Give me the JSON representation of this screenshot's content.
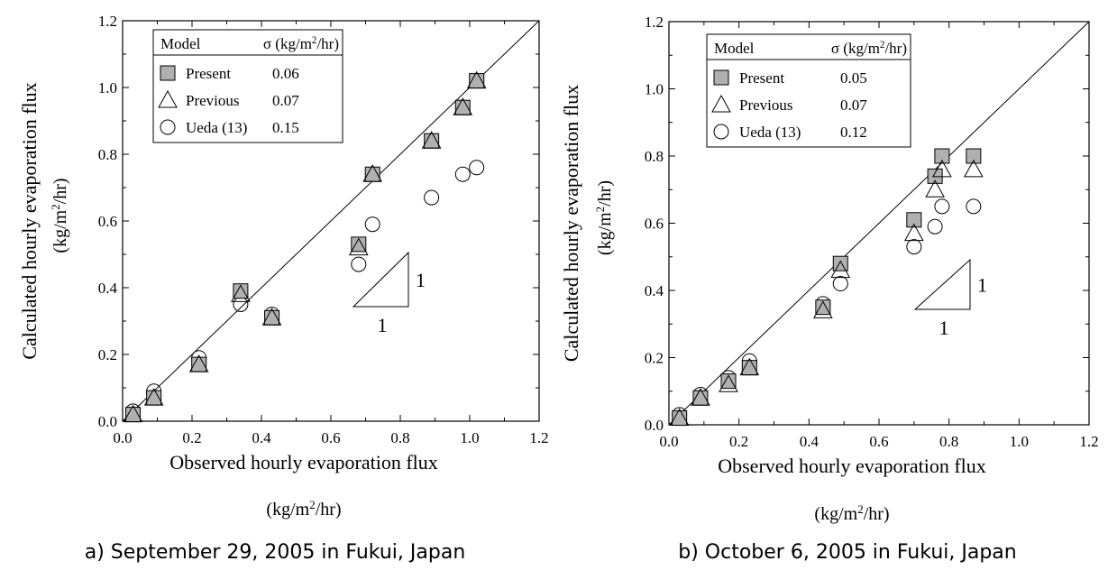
{
  "chart_data": [
    {
      "type": "scatter",
      "caption": "a) September 29, 2005 in Fukui, Japan",
      "xlabel": "Observed hourly evaporation flux",
      "xunit": "(kg/m²/hr)",
      "ylabel": "Calculated hourly evaporation flux",
      "yunit": "(kg/m²/hr)",
      "xlim": [
        0,
        1.2
      ],
      "ylim": [
        0,
        1.2
      ],
      "xticks": [
        "0.0",
        "0.2",
        "0.4",
        "0.6",
        "0.8",
        "1.0",
        "1.2"
      ],
      "yticks": [
        "0.0",
        "0.2",
        "0.4",
        "0.6",
        "0.8",
        "1.0",
        "1.2"
      ],
      "reference_line": "1:1",
      "slope_labels": [
        "1",
        "1"
      ],
      "legend": {
        "placement": "top-left",
        "header_model": "Model",
        "header_sigma": "σ (kg/m²/hr)",
        "entries": [
          {
            "name": "Present",
            "sigma": "0.06",
            "marker": "square"
          },
          {
            "name": "Previous",
            "sigma": "0.07",
            "marker": "triangle"
          },
          {
            "name": "Ueda (13)",
            "sigma": "0.15",
            "marker": "circle"
          }
        ]
      },
      "series": [
        {
          "name": "Present",
          "marker": "square",
          "color": "#b0b0b0",
          "x": [
            0.03,
            0.09,
            0.22,
            0.34,
            0.43,
            0.68,
            0.72,
            0.89,
            0.98,
            1.02
          ],
          "y": [
            0.02,
            0.07,
            0.17,
            0.39,
            0.31,
            0.53,
            0.74,
            0.84,
            0.94,
            1.02
          ]
        },
        {
          "name": "Previous",
          "marker": "triangle",
          "color": "#ffffff",
          "x": [
            0.03,
            0.09,
            0.22,
            0.34,
            0.43,
            0.68,
            0.72,
            0.89,
            0.98,
            1.02
          ],
          "y": [
            0.02,
            0.07,
            0.17,
            0.38,
            0.31,
            0.52,
            0.74,
            0.84,
            0.94,
            1.02
          ]
        },
        {
          "name": "Ueda (13)",
          "marker": "circle",
          "color": "#ffffff",
          "x": [
            0.03,
            0.09,
            0.22,
            0.34,
            0.43,
            0.68,
            0.72,
            0.89,
            0.98,
            1.02
          ],
          "y": [
            0.03,
            0.09,
            0.19,
            0.35,
            0.32,
            0.47,
            0.59,
            0.67,
            0.74,
            0.76
          ]
        }
      ]
    },
    {
      "type": "scatter",
      "caption": "b) October 6, 2005 in Fukui, Japan",
      "xlabel": "Observed hourly evaporation flux",
      "xunit": "(kg/m²/hr)",
      "ylabel": "Calculated hourly evaporation flux",
      "yunit": "(kg/m²/hr)",
      "xlim": [
        0,
        1.2
      ],
      "ylim": [
        0,
        1.2
      ],
      "xticks": [
        "0.0",
        "0.2",
        "0.4",
        "0.6",
        "0.8",
        "1.0",
        "1.2"
      ],
      "yticks": [
        "0.0",
        "0.2",
        "0.4",
        "0.6",
        "0.8",
        "1.0",
        "1.2"
      ],
      "reference_line": "1:1",
      "slope_labels": [
        "1",
        "1"
      ],
      "legend": {
        "placement": "top-left",
        "header_model": "Model",
        "header_sigma": "σ (kg/m²/hr)",
        "entries": [
          {
            "name": "Present",
            "sigma": "0.05",
            "marker": "square"
          },
          {
            "name": "Previous",
            "sigma": "0.07",
            "marker": "triangle"
          },
          {
            "name": "Ueda (13)",
            "sigma": "0.12",
            "marker": "circle"
          }
        ]
      },
      "series": [
        {
          "name": "Present",
          "marker": "square",
          "color": "#b0b0b0",
          "x": [
            0.03,
            0.09,
            0.17,
            0.23,
            0.44,
            0.49,
            0.7,
            0.76,
            0.78,
            0.87
          ],
          "y": [
            0.02,
            0.08,
            0.13,
            0.17,
            0.35,
            0.48,
            0.61,
            0.74,
            0.8,
            0.8
          ]
        },
        {
          "name": "Previous",
          "marker": "triangle",
          "color": "#ffffff",
          "x": [
            0.03,
            0.09,
            0.17,
            0.23,
            0.44,
            0.49,
            0.7,
            0.76,
            0.78,
            0.87
          ],
          "y": [
            0.02,
            0.08,
            0.12,
            0.17,
            0.34,
            0.46,
            0.57,
            0.7,
            0.76,
            0.76
          ]
        },
        {
          "name": "Ueda (13)",
          "marker": "circle",
          "color": "#ffffff",
          "x": [
            0.03,
            0.09,
            0.17,
            0.23,
            0.44,
            0.49,
            0.7,
            0.76,
            0.78,
            0.87
          ],
          "y": [
            0.03,
            0.09,
            0.14,
            0.19,
            0.36,
            0.42,
            0.53,
            0.59,
            0.65,
            0.65
          ]
        }
      ]
    }
  ]
}
